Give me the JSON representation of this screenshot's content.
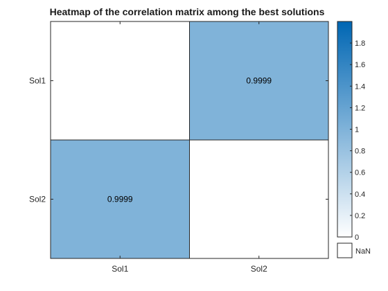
{
  "chart_data": {
    "type": "heatmap",
    "title": "Heatmap of the correlation matrix among the best solutions",
    "x_labels": [
      "Sol1",
      "Sol2"
    ],
    "y_labels": [
      "Sol1",
      "Sol2"
    ],
    "values": [
      [
        null,
        0.9999
      ],
      [
        0.9999,
        null
      ]
    ],
    "cell_labels": [
      [
        "",
        "0.9999"
      ],
      [
        "0.9999",
        ""
      ]
    ],
    "colorbar": {
      "range": [
        0,
        2
      ],
      "ticks": [
        "0",
        "0.2",
        "0.4",
        "0.6",
        "0.8",
        "1",
        "1.2",
        "1.4",
        "1.6",
        "1.8"
      ],
      "nan_label": "NaN",
      "color_low": "#ffffff",
      "color_high": "#0066b3",
      "nan_color": "#ffffff"
    },
    "legend_position": "right",
    "grid": false
  }
}
